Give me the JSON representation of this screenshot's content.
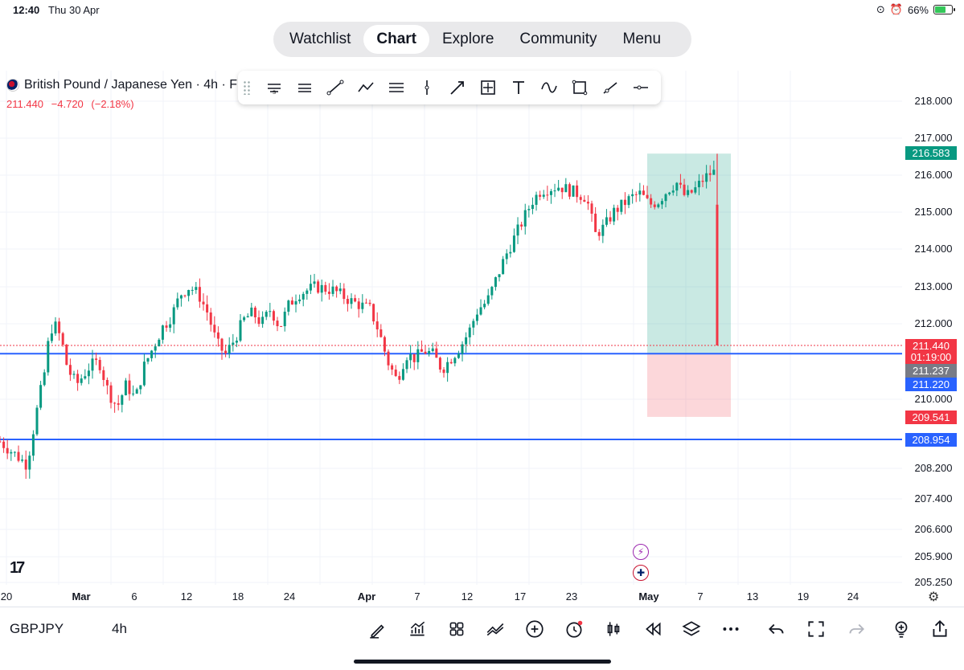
{
  "status_bar": {
    "time": "12:40",
    "date": "Thu 30 Apr",
    "battery_text": "66%",
    "battery_level": 0.66
  },
  "nav": {
    "tabs": [
      "Watchlist",
      "Chart",
      "Explore",
      "Community",
      "Menu"
    ],
    "active": "Chart"
  },
  "symbol": {
    "title": "British Pound / Japanese Yen · 4h · F",
    "price": "211.440",
    "change": "−4.720",
    "change_pct": "(−2.18%)"
  },
  "drawing_tools": [
    "long-position-tool",
    "short-position-tool",
    "trend-line-tool",
    "path-tool",
    "parallel-channel-tool",
    "vertical-line-tool",
    "arrow-tool",
    "date-price-range-tool",
    "text-tool",
    "curve-tool",
    "rectangle-tool",
    "ray-tool",
    "horizontal-ray-tool"
  ],
  "price_axis": {
    "labels": [
      "218.000",
      "217.000",
      "216.000",
      "215.000",
      "214.000",
      "213.000",
      "212.000",
      "210.000",
      "208.200",
      "207.400",
      "206.600",
      "205.900",
      "205.250"
    ],
    "tags": [
      {
        "text": "216.583",
        "color": "#089981"
      },
      {
        "text": "211.440",
        "color": "#f23645"
      },
      {
        "text": "01:19:00",
        "color": "#f23645"
      },
      {
        "text": "211.237",
        "color": "#787b86"
      },
      {
        "text": "211.220",
        "color": "#2962ff"
      },
      {
        "text": "209.541",
        "color": "#f23645"
      },
      {
        "text": "208.954",
        "color": "#2962ff"
      }
    ]
  },
  "time_axis": {
    "labels": [
      "20",
      "Mar",
      "6",
      "12",
      "18",
      "24",
      "Apr",
      "7",
      "12",
      "17",
      "23",
      "May",
      "7",
      "13",
      "19",
      "24"
    ]
  },
  "logo_text": "17",
  "chart_data": {
    "type": "candlestick",
    "instrument": "GBPJPY",
    "interval": "4h",
    "close_series": [
      [
        0,
        208.9
      ],
      [
        0.015,
        208.6
      ],
      [
        0.03,
        208.3
      ],
      [
        0.04,
        209.6
      ],
      [
        0.05,
        210.8
      ],
      [
        0.055,
        211.8
      ],
      [
        0.06,
        212.0
      ],
      [
        0.068,
        211.6
      ],
      [
        0.075,
        210.8
      ],
      [
        0.085,
        210.4
      ],
      [
        0.1,
        210.9
      ],
      [
        0.11,
        211.0
      ],
      [
        0.12,
        210.2
      ],
      [
        0.13,
        209.8
      ],
      [
        0.14,
        210.4
      ],
      [
        0.15,
        210.0
      ],
      [
        0.16,
        210.9
      ],
      [
        0.17,
        211.4
      ],
      [
        0.18,
        211.9
      ],
      [
        0.19,
        212.2
      ],
      [
        0.2,
        212.8
      ],
      [
        0.21,
        213.0
      ],
      [
        0.22,
        212.8
      ],
      [
        0.23,
        212.3
      ],
      [
        0.24,
        211.5
      ],
      [
        0.25,
        211.2
      ],
      [
        0.26,
        211.6
      ],
      [
        0.27,
        212.1
      ],
      [
        0.28,
        212.3
      ],
      [
        0.29,
        212.0
      ],
      [
        0.3,
        212.4
      ],
      [
        0.31,
        211.9
      ],
      [
        0.32,
        212.5
      ],
      [
        0.33,
        212.8
      ],
      [
        0.35,
        213.0
      ],
      [
        0.37,
        212.9
      ],
      [
        0.39,
        212.6
      ],
      [
        0.41,
        212.4
      ],
      [
        0.42,
        211.8
      ],
      [
        0.43,
        211.0
      ],
      [
        0.44,
        210.5
      ],
      [
        0.45,
        211.2
      ],
      [
        0.46,
        211.1
      ],
      [
        0.47,
        211.3
      ],
      [
        0.48,
        211.2
      ],
      [
        0.49,
        210.8
      ],
      [
        0.5,
        211.1
      ],
      [
        0.51,
        211.4
      ],
      [
        0.52,
        211.8
      ],
      [
        0.53,
        212.4
      ],
      [
        0.54,
        212.6
      ],
      [
        0.55,
        213.2
      ],
      [
        0.56,
        213.8
      ],
      [
        0.57,
        214.3
      ],
      [
        0.58,
        214.8
      ],
      [
        0.59,
        215.3
      ],
      [
        0.6,
        215.6
      ],
      [
        0.62,
        215.7
      ],
      [
        0.64,
        215.5
      ],
      [
        0.65,
        215.4
      ],
      [
        0.66,
        214.4
      ],
      [
        0.67,
        214.6
      ],
      [
        0.68,
        215.0
      ],
      [
        0.69,
        215.2
      ],
      [
        0.7,
        215.4
      ],
      [
        0.71,
        215.5
      ],
      [
        0.72,
        215.2
      ],
      [
        0.73,
        215.3
      ],
      [
        0.74,
        215.6
      ],
      [
        0.75,
        215.8
      ],
      [
        0.76,
        215.4
      ],
      [
        0.77,
        215.6
      ],
      [
        0.78,
        215.9
      ],
      [
        0.79,
        216.1
      ],
      [
        0.795,
        216.0
      ],
      [
        0.797,
        211.44
      ]
    ],
    "x_range": [
      0,
      1
    ],
    "ylim": [
      205.25,
      218.0
    ],
    "current_price": 211.44,
    "horizontal_lines": [
      211.22,
      208.954
    ],
    "long_position": {
      "entry": 211.237,
      "target": 216.583,
      "stop": 209.541
    }
  }
}
